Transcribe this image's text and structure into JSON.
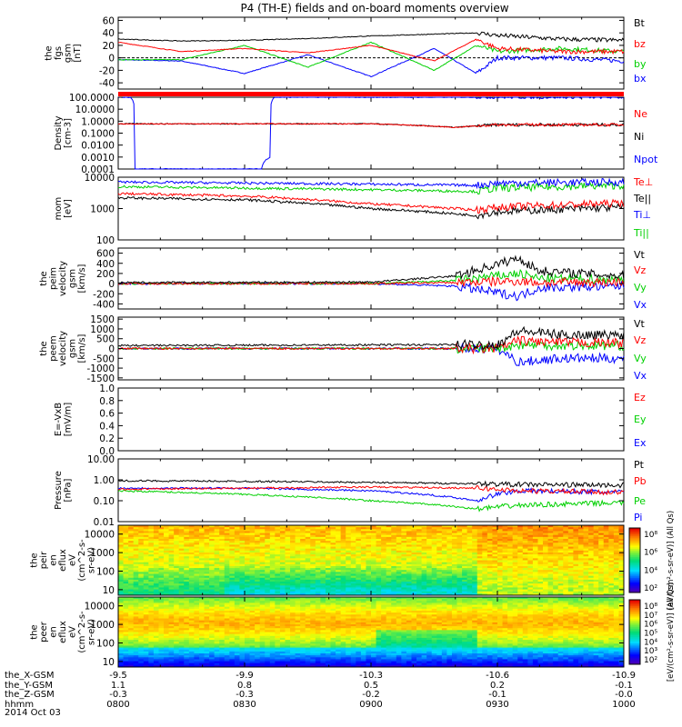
{
  "title": "P4 (TH-E) fields and on-board moments overview",
  "date": "2014 Oct 03",
  "time_axis": {
    "range": [
      "0800",
      "1000"
    ],
    "ticks": [
      "0800",
      "0830",
      "0900",
      "0930",
      "1000"
    ],
    "rows": [
      {
        "label": "the_X-GSM",
        "values": [
          "-9.5",
          "-9.9",
          "-10.3",
          "-10.6",
          "-10.9"
        ]
      },
      {
        "label": "the_Y-GSM",
        "values": [
          "1.1",
          "0.8",
          "0.5",
          "0.2",
          "-0.1"
        ]
      },
      {
        "label": "the_Z-GSM",
        "values": [
          "-0.3",
          "-0.3",
          "-0.2",
          "-0.1",
          "-0.0"
        ]
      },
      {
        "label": "hhmm",
        "values": [
          "0800",
          "0830",
          "0900",
          "0930",
          "1000"
        ]
      }
    ]
  },
  "colors": {
    "black": "#000000",
    "red": "#ff0000",
    "green": "#00d000",
    "blue": "#0000ff"
  },
  "chart_data": [
    {
      "type": "line",
      "ylabel": [
        "the",
        "fgs",
        "gsm",
        "[nT]"
      ],
      "ylim": [
        -50,
        65
      ],
      "yticks": [
        "60",
        "40",
        "20",
        "0",
        "-20",
        "-40"
      ],
      "legend": [
        {
          "name": "Bt",
          "color": "#000000"
        },
        {
          "name": "bz",
          "color": "#ff0000"
        },
        {
          "name": "by",
          "color": "#00d000"
        },
        {
          "name": "bx",
          "color": "#0000ff"
        }
      ],
      "series": [
        {
          "name": "Bt",
          "x": [
            "0800",
            "0815",
            "0830",
            "0845",
            "0900",
            "0915",
            "0925",
            "0930",
            "0945",
            "1000"
          ],
          "values": [
            30,
            27,
            28,
            31,
            35,
            38,
            40,
            36,
            30,
            28
          ]
        },
        {
          "name": "bz",
          "x": [
            "0800",
            "0815",
            "0830",
            "0845",
            "0900",
            "0915",
            "0925",
            "0930",
            "0945",
            "1000"
          ],
          "values": [
            25,
            10,
            15,
            8,
            20,
            -5,
            30,
            15,
            10,
            10
          ]
        },
        {
          "name": "by",
          "x": [
            "0800",
            "0815",
            "0830",
            "0845",
            "0900",
            "0915",
            "0925",
            "0930",
            "0945",
            "1000"
          ],
          "values": [
            -3,
            -3,
            20,
            -15,
            25,
            -20,
            20,
            10,
            15,
            10
          ]
        },
        {
          "name": "bx",
          "x": [
            "0800",
            "0815",
            "0830",
            "0845",
            "0900",
            "0915",
            "0925",
            "0930",
            "0945",
            "1000"
          ],
          "values": [
            -3,
            -5,
            -25,
            5,
            -30,
            15,
            -25,
            0,
            0,
            -5
          ]
        }
      ]
    },
    {
      "type": "line",
      "ylabel": [
        "Density",
        "[cm-3]"
      ],
      "ylim": [
        0.0001,
        100
      ],
      "yticks": [
        "100.0000",
        "10.0000",
        "1.0000",
        "0.1000",
        "0.0100",
        "0.0010",
        "0.0001"
      ],
      "log": true,
      "legend": [
        {
          "name": "Ne",
          "color": "#ff0000"
        },
        {
          "name": "Ni",
          "color": "#000000"
        },
        {
          "name": "Npot",
          "color": "#0000ff"
        }
      ],
      "series": [
        {
          "name": "Ne",
          "x": [
            "0800",
            "0830",
            "0900",
            "0920",
            "0930",
            "1000"
          ],
          "values": [
            0.6,
            0.6,
            0.6,
            0.3,
            0.5,
            0.5
          ]
        },
        {
          "name": "Ni",
          "x": [
            "0800",
            "0830",
            "0900",
            "0920",
            "0930",
            "1000"
          ],
          "values": [
            0.6,
            0.6,
            0.6,
            0.3,
            0.5,
            0.5
          ]
        },
        {
          "name": "Npot",
          "x": [
            "0800",
            "0803",
            "0804",
            "0834",
            "0836",
            "0837",
            "1000"
          ],
          "values": [
            100,
            100,
            0.0001,
            0.0001,
            0.001,
            100,
            100
          ]
        }
      ]
    },
    {
      "type": "line",
      "ylabel": [
        "mom",
        "[eV]"
      ],
      "ylim": [
        100,
        10000
      ],
      "yticks": [
        "10000",
        "1000",
        "100"
      ],
      "log": true,
      "legend": [
        {
          "name": "Te⊥",
          "color": "#ff0000"
        },
        {
          "name": "Te||",
          "color": "#000000"
        },
        {
          "name": "Ti⊥",
          "color": "#0000ff"
        },
        {
          "name": "Ti||",
          "color": "#00d000"
        }
      ],
      "series": [
        {
          "name": "Te⊥",
          "x": [
            "0800",
            "0830",
            "0900",
            "0925",
            "0930",
            "1000"
          ],
          "values": [
            3000,
            2500,
            1400,
            900,
            1100,
            1500
          ]
        },
        {
          "name": "Te||",
          "x": [
            "0800",
            "0830",
            "0900",
            "0925",
            "0930",
            "1000"
          ],
          "values": [
            2200,
            1900,
            1000,
            600,
            800,
            1100
          ]
        },
        {
          "name": "Ti⊥",
          "x": [
            "0800",
            "0830",
            "0900",
            "0925",
            "0930",
            "1000"
          ],
          "values": [
            7000,
            6500,
            6000,
            5500,
            6500,
            7000
          ]
        },
        {
          "name": "Ti||",
          "x": [
            "0800",
            "0830",
            "0900",
            "0925",
            "0930",
            "1000"
          ],
          "values": [
            5000,
            4500,
            4000,
            3500,
            4500,
            5500
          ]
        }
      ]
    },
    {
      "type": "line",
      "ylabel": [
        "the",
        "peim",
        "velocity",
        "gsm",
        "[km/s]"
      ],
      "ylim": [
        -500,
        700
      ],
      "yticks": [
        "600",
        "400",
        "200",
        "0",
        "-200",
        "-400"
      ],
      "legend": [
        {
          "name": "Vt",
          "color": "#000000"
        },
        {
          "name": "Vz",
          "color": "#ff0000"
        },
        {
          "name": "Vy",
          "color": "#00d000"
        },
        {
          "name": "Vx",
          "color": "#0000ff"
        }
      ],
      "series": [
        {
          "name": "Vt",
          "x": [
            "0800",
            "0900",
            "0920",
            "0935",
            "0940",
            "1000"
          ],
          "values": [
            20,
            30,
            150,
            500,
            250,
            150
          ]
        },
        {
          "name": "Vz",
          "x": [
            "0800",
            "0900",
            "0920",
            "0935",
            "0940",
            "1000"
          ],
          "values": [
            0,
            0,
            20,
            50,
            20,
            30
          ]
        },
        {
          "name": "Vy",
          "x": [
            "0800",
            "0900",
            "0920",
            "0935",
            "0940",
            "1000"
          ],
          "values": [
            0,
            0,
            60,
            200,
            100,
            80
          ]
        },
        {
          "name": "Vx",
          "x": [
            "0800",
            "0900",
            "0920",
            "0935",
            "0940",
            "1000"
          ],
          "values": [
            0,
            0,
            -50,
            -250,
            -80,
            -50
          ]
        }
      ]
    },
    {
      "type": "line",
      "ylabel": [
        "the",
        "peem",
        "velocity",
        "gsm",
        "[km/s]"
      ],
      "ylim": [
        -1600,
        1600
      ],
      "yticks": [
        "1500",
        "1000",
        "500",
        "0",
        "-500",
        "-1000",
        "-1500"
      ],
      "legend": [
        {
          "name": "Vt",
          "color": "#000000"
        },
        {
          "name": "Vz",
          "color": "#ff0000"
        },
        {
          "name": "Vy",
          "color": "#00d000"
        },
        {
          "name": "Vx",
          "color": "#0000ff"
        }
      ],
      "series": [
        {
          "name": "Vt",
          "x": [
            "0800",
            "0930",
            "0935",
            "0945",
            "1000"
          ],
          "values": [
            150,
            200,
            900,
            700,
            700
          ]
        },
        {
          "name": "Vz",
          "x": [
            "0800",
            "0930",
            "0935",
            "0945",
            "1000"
          ],
          "values": [
            0,
            0,
            400,
            300,
            300
          ]
        },
        {
          "name": "Vy",
          "x": [
            "0800",
            "0930",
            "0935",
            "0945",
            "1000"
          ],
          "values": [
            0,
            0,
            200,
            150,
            150
          ]
        },
        {
          "name": "Vx",
          "x": [
            "0800",
            "0930",
            "0935",
            "0945",
            "1000"
          ],
          "values": [
            0,
            0,
            -700,
            -500,
            -500
          ]
        }
      ]
    },
    {
      "type": "line",
      "ylabel": [
        "E=-VxB",
        "[mV/m]"
      ],
      "ylim": [
        0,
        1
      ],
      "yticks": [
        "1.0",
        "0.8",
        "0.6",
        "0.4",
        "0.2",
        "0.0"
      ],
      "legend": [
        {
          "name": "Ez",
          "color": "#ff0000"
        },
        {
          "name": "Ey",
          "color": "#00d000"
        },
        {
          "name": "Ex",
          "color": "#0000ff"
        }
      ],
      "series": []
    },
    {
      "type": "line",
      "ylabel": [
        "Pressure",
        "[nPa]"
      ],
      "ylim": [
        0.01,
        10
      ],
      "yticks": [
        "10.00",
        "1.00",
        "0.10",
        "0.01"
      ],
      "log": true,
      "legend": [
        {
          "name": "Pt",
          "color": "#000000"
        },
        {
          "name": "Pb",
          "color": "#ff0000"
        },
        {
          "name": "Pe",
          "color": "#00d000"
        },
        {
          "name": "Pi",
          "color": "#0000ff"
        }
      ],
      "series": [
        {
          "name": "Pt",
          "x": [
            "0800",
            "0830",
            "0900",
            "0925",
            "0935",
            "1000"
          ],
          "values": [
            0.9,
            0.85,
            0.75,
            0.65,
            0.6,
            0.55
          ]
        },
        {
          "name": "Pb",
          "x": [
            "0800",
            "0830",
            "0900",
            "0925",
            "0935",
            "1000"
          ],
          "values": [
            0.35,
            0.4,
            0.45,
            0.4,
            0.3,
            0.25
          ]
        },
        {
          "name": "Pe",
          "x": [
            "0800",
            "0830",
            "0900",
            "0925",
            "0935",
            "1000"
          ],
          "values": [
            0.3,
            0.2,
            0.1,
            0.04,
            0.06,
            0.08
          ]
        },
        {
          "name": "Pi",
          "x": [
            "0800",
            "0830",
            "0900",
            "0925",
            "0935",
            "1000"
          ],
          "values": [
            0.4,
            0.4,
            0.3,
            0.1,
            0.3,
            0.25
          ]
        }
      ]
    },
    {
      "type": "heatmap",
      "ylabel": [
        "the",
        "peir",
        "en",
        "eflux",
        "eV",
        "(cm^2-s-",
        "sr-eV)"
      ],
      "ylim": [
        5,
        30000
      ],
      "yticks": [
        "10000",
        "1000",
        "100",
        "10"
      ],
      "log": true,
      "colorbar_label": "[eV/(cm²-s-sr-eV)] (All Qs)",
      "colorbar_ticks": [
        "10⁸",
        "10⁶",
        "10⁴",
        "10²"
      ]
    },
    {
      "type": "heatmap",
      "ylabel": [
        "the",
        "peer",
        "en",
        "eflux",
        "eV",
        "(cm^2-s-",
        "sr-eV)"
      ],
      "ylim": [
        5,
        30000
      ],
      "yticks": [
        "10000",
        "1000",
        "100",
        "10"
      ],
      "log": true,
      "colorbar_label": "[eV/(cm²-s-sr-eV)] (All Qs)",
      "colorbar_ticks": [
        "10⁸",
        "10⁷",
        "10⁶",
        "10⁵",
        "10⁴",
        "10³",
        "10²"
      ]
    }
  ]
}
